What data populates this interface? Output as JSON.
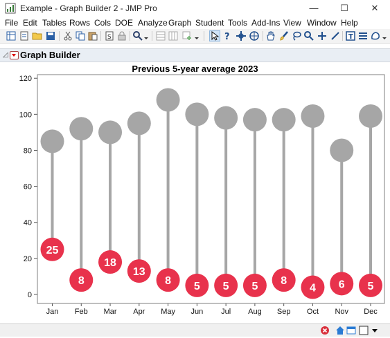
{
  "window": {
    "title": "Example - Graph Builder 2 - JMP Pro",
    "minimize_glyph": "—",
    "maximize_glyph": "☐",
    "close_glyph": "✕"
  },
  "menu": [
    "File",
    "Edit",
    "Tables",
    "Rows",
    "Cols",
    "DOE",
    "Analyze",
    "Graph",
    "Student",
    "Tools",
    "Add-Ins",
    "View",
    "Window",
    "Help"
  ],
  "toolbar_icons": [
    "new-data-table-icon",
    "new-script-icon",
    "open-icon",
    "save-icon",
    "cut-icon",
    "copy-icon",
    "paste-icon",
    "script-icon",
    "lock-icon",
    "search-icon",
    "dropdown-icon",
    "table-icon",
    "columns-icon",
    "add-icon",
    "arrow-pointer-icon",
    "help-pointer-icon",
    "crosshair-icon",
    "target-icon",
    "hand-icon",
    "brush-icon",
    "lasso-icon",
    "magnifier-icon",
    "plus-icon",
    "line-icon",
    "annotate-icon",
    "list-icon",
    "shape-icon"
  ],
  "outline": {
    "title": "Graph Builder"
  },
  "chart_title": "Previous 5-year average  2023",
  "status_icons": [
    "stop-icon",
    "home-icon",
    "window-list-icon",
    "layout-icon",
    "dropdown-icon"
  ],
  "chart_data": {
    "type": "lollipop",
    "categories": [
      "Jan",
      "Feb",
      "Mar",
      "Apr",
      "May",
      "Jun",
      "Jul",
      "Aug",
      "Sep",
      "Oct",
      "Nov",
      "Dec"
    ],
    "series": [
      {
        "name": "Previous 5-year average",
        "values": [
          85,
          92,
          90,
          95,
          108,
          100,
          98,
          97,
          97,
          99,
          80,
          99
        ],
        "color": "#a6a6a6"
      },
      {
        "name": "2023",
        "values": [
          25,
          8,
          18,
          13,
          8,
          5,
          5,
          5,
          8,
          4,
          6,
          5
        ],
        "color": "#e8324c"
      }
    ],
    "yticks": [
      0,
      20,
      40,
      60,
      80,
      100,
      120
    ],
    "ylim": [
      -5,
      122
    ],
    "grid": false
  }
}
